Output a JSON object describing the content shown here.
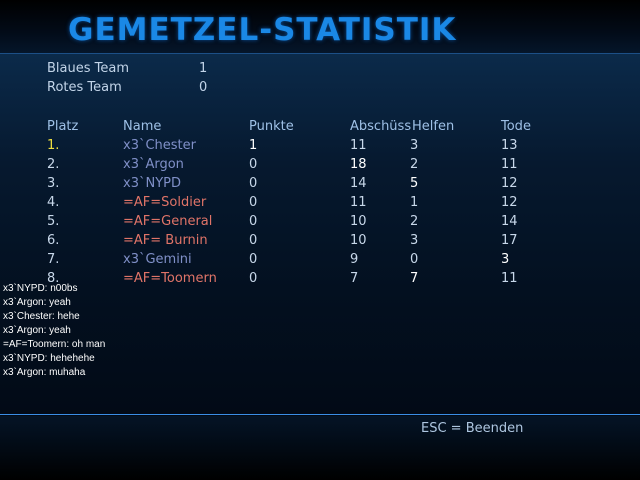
{
  "title": "GEMETZEL-STATISTIK",
  "teams": [
    {
      "label": "Blaues Team",
      "score": "1"
    },
    {
      "label": "Rotes Team",
      "score": "0"
    }
  ],
  "columns": {
    "rank": "Platz",
    "name": "Name",
    "points": "Punkte",
    "kills": "Abschüss",
    "assists": "Helfen",
    "deaths": "Tode"
  },
  "players": [
    {
      "rank": "1.",
      "name": "x3`Chester",
      "team": "blue",
      "points": "1",
      "kills": "11",
      "assists": "3",
      "deaths": "13"
    },
    {
      "rank": "2.",
      "name": "x3`Argon",
      "team": "blue",
      "points": "0",
      "kills": "18",
      "assists": "2",
      "deaths": "11"
    },
    {
      "rank": "3.",
      "name": "x3`NYPD",
      "team": "blue",
      "points": "0",
      "kills": "14",
      "assists": "5",
      "deaths": "12"
    },
    {
      "rank": "4.",
      "name": "=AF=Soldier",
      "team": "red",
      "points": "0",
      "kills": "11",
      "assists": "1",
      "deaths": "12"
    },
    {
      "rank": "5.",
      "name": "=AF=General",
      "team": "red",
      "points": "0",
      "kills": "10",
      "assists": "2",
      "deaths": "14"
    },
    {
      "rank": "6.",
      "name": "=AF= Burnin",
      "team": "red",
      "points": "0",
      "kills": "10",
      "assists": "3",
      "deaths": "17"
    },
    {
      "rank": "7.",
      "name": "x3`Gemini",
      "team": "blue",
      "points": "0",
      "kills": "9",
      "assists": "0",
      "deaths": "3"
    },
    {
      "rank": "8.",
      "name": "=AF=Toomern",
      "team": "red",
      "points": "0",
      "kills": "7",
      "assists": "7",
      "deaths": "11"
    }
  ],
  "chat": [
    "x3`NYPD: n00bs",
    "x3`Argon: yeah",
    "x3`Chester: hehe",
    "x3`Argon: yeah",
    "=AF=Toomern: oh man",
    "x3`NYPD: hehehehe",
    "x3`Argon: muhaha"
  ],
  "footer": {
    "exit_hint": "ESC = Beenden"
  },
  "colors": {
    "title": "#1a88e6",
    "blue_team_name": "#8090c8",
    "red_team_name": "#e07468",
    "first_place": "#f0e040"
  }
}
